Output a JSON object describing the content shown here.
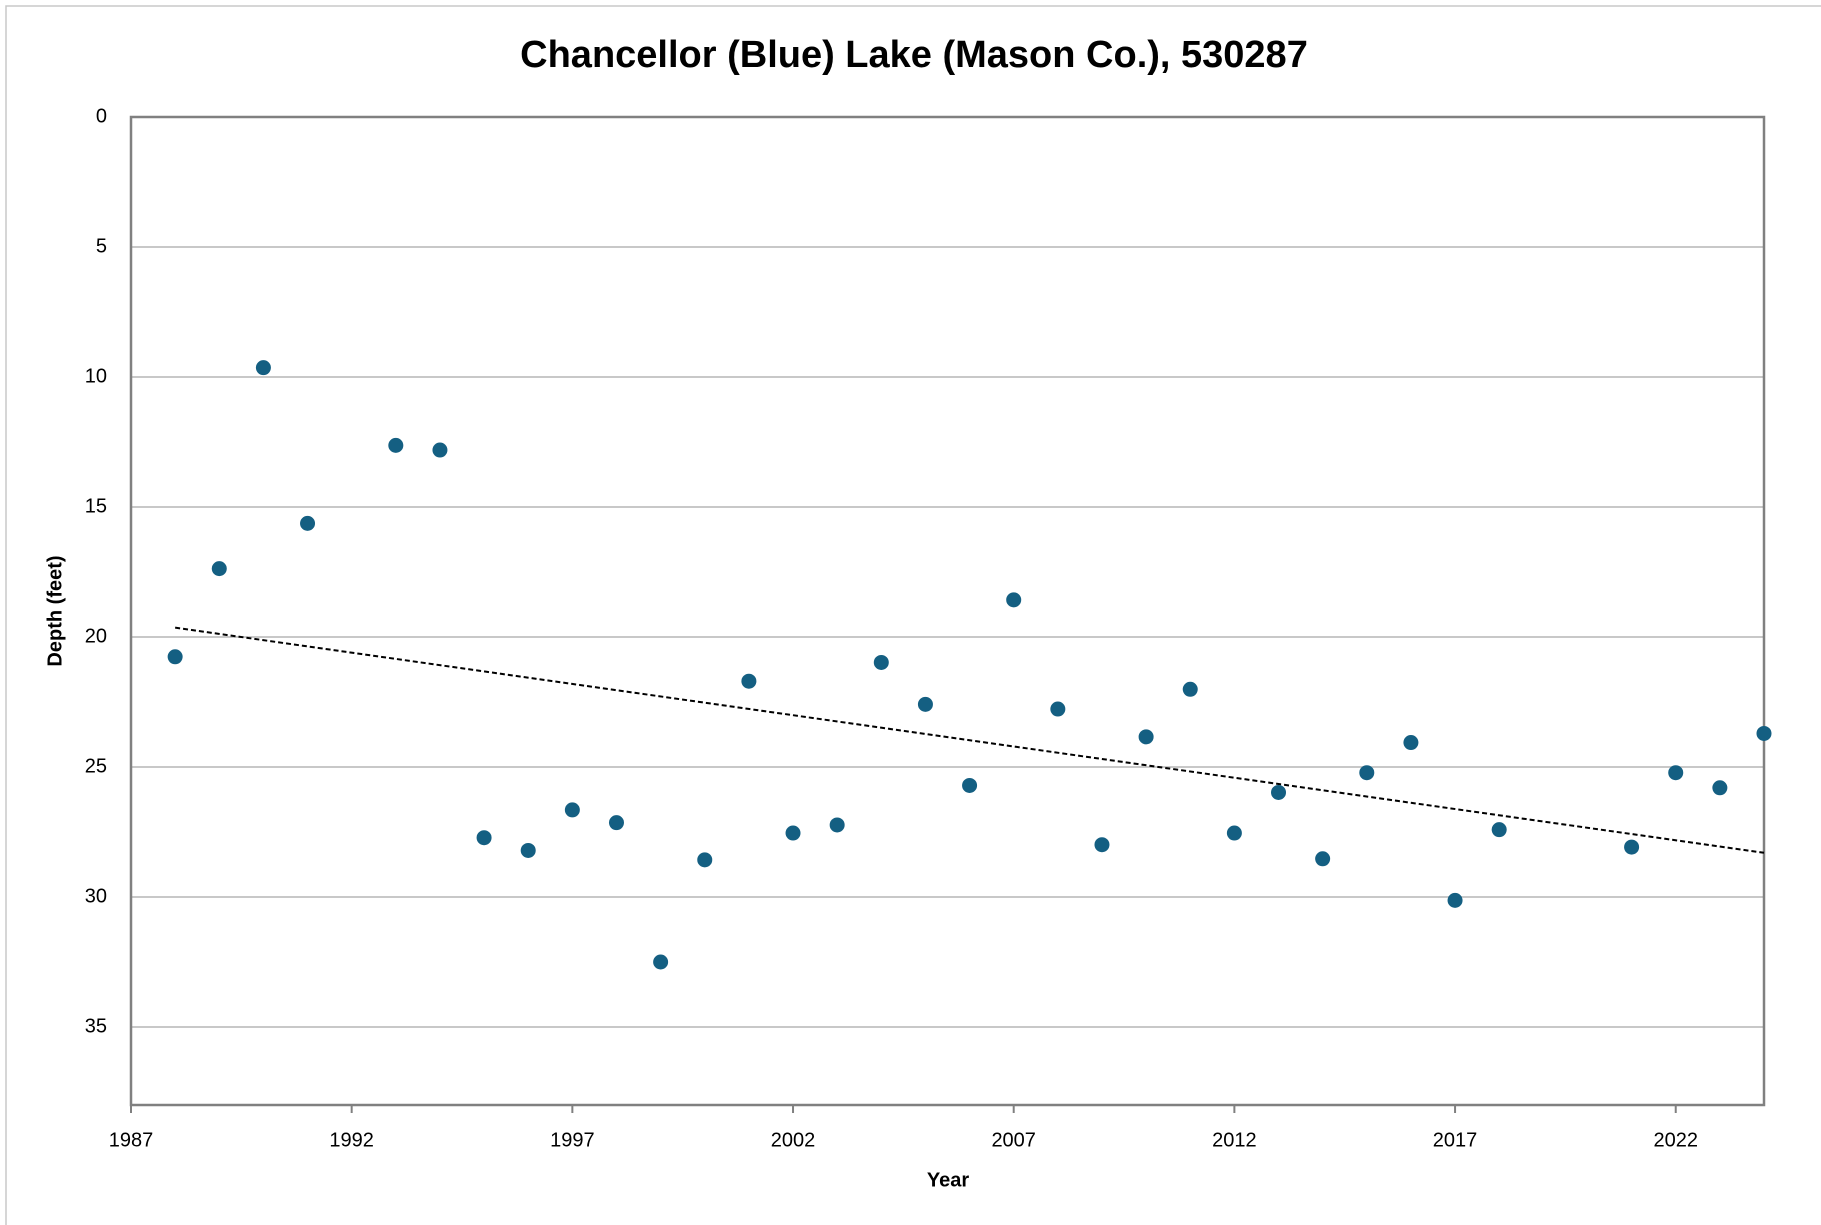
{
  "chart_data": {
    "type": "scatter",
    "title": "Chancellor (Blue) Lake (Mason Co.), 530287",
    "x_label": "Year",
    "y_label": "Depth (feet)",
    "x": [
      1988,
      1989,
      1990,
      1991,
      1993,
      1994,
      1995,
      1996,
      1997,
      1998,
      1999,
      2000,
      2001,
      2002,
      2003,
      2004,
      2005,
      2006,
      2007,
      2008,
      2009,
      2010,
      2011,
      2012,
      2013,
      2014,
      2015,
      2016,
      2017,
      2018,
      2021,
      2022,
      2023,
      2024
    ],
    "values": [
      20.76,
      17.37,
      9.64,
      15.63,
      12.63,
      12.81,
      27.72,
      28.21,
      26.65,
      27.14,
      32.5,
      28.57,
      21.7,
      27.54,
      27.23,
      20.98,
      22.59,
      25.71,
      18.57,
      22.77,
      27.99,
      23.84,
      22.01,
      27.54,
      25.98,
      28.53,
      25.22,
      24.06,
      30.13,
      27.41,
      28.08,
      25.22,
      25.8,
      23.71
    ],
    "color": "#145f82",
    "trendline": {
      "x": [
        1988,
        2024
      ],
      "values": [
        19.64,
        28.3
      ],
      "color": "#000000"
    },
    "xlim": [
      1987,
      2024
    ],
    "xticks": [
      1987,
      1992,
      1997,
      2002,
      2007,
      2012,
      2017,
      2022
    ],
    "ylim": [
      0,
      38
    ],
    "yticks": [
      0,
      5,
      10,
      15,
      20,
      25,
      30,
      35
    ],
    "y_inverted": true,
    "grid": true
  }
}
